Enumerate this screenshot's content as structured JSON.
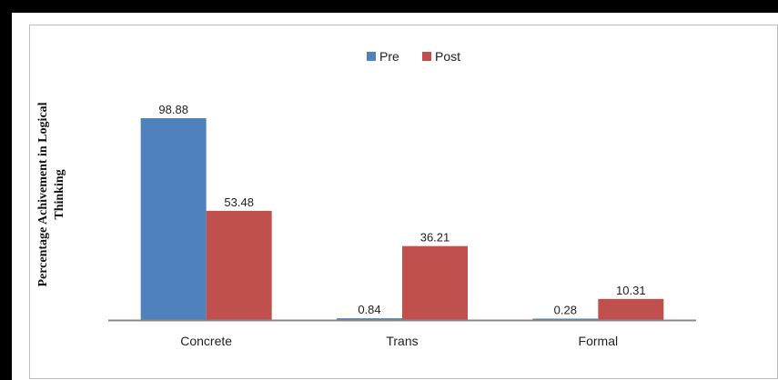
{
  "chart_data": {
    "type": "bar",
    "categories": [
      "Concrete",
      "Trans",
      "Formal"
    ],
    "series": [
      {
        "name": "Pre",
        "values": [
          98.88,
          0.84,
          0.28
        ],
        "color": "#4f81bd"
      },
      {
        "name": "Post",
        "values": [
          53.48,
          36.21,
          10.31
        ],
        "color": "#c0504d"
      }
    ],
    "data_labels": [
      [
        "98.88",
        "0.84",
        "0.28"
      ],
      [
        "53.48",
        "36.21",
        "10.31"
      ]
    ],
    "ylabel_lines": [
      "Percentage Achivement in Logical",
      "Thinking"
    ],
    "xlabel": "",
    "ylim": [
      0,
      100
    ],
    "legend_position": "top-center",
    "grid": false
  }
}
